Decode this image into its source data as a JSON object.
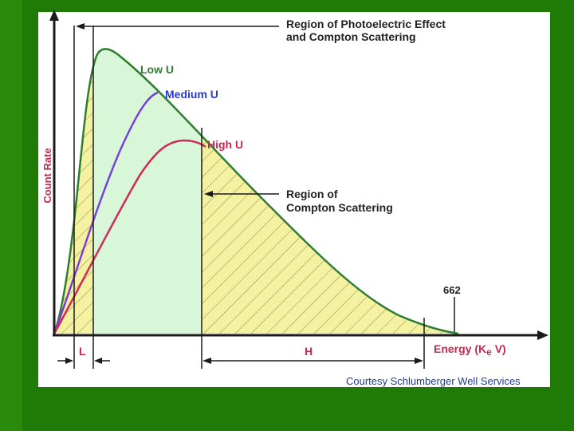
{
  "colors": {
    "background": "#1f7a06",
    "panel": "#ffffff",
    "low_curve": "#2e7d32",
    "medium_curve": "#7a3fd6",
    "high_curve": "#d0295a",
    "photoelectric_fill": "#d8f7d8",
    "compton_fill": "#f4f2a0",
    "hatch": "#8a8a50",
    "axis": "#1b1b1b",
    "label_red": "#c62850",
    "label_blue": "#2a3ac8",
    "label_dark": "#222222",
    "label_credit": "#1a3f9a"
  },
  "diagram": {
    "y_axis_label": "Count Rate",
    "region_photo_line1": "Region of Photoelectric Effect",
    "region_photo_line2": "and Compton Scattering",
    "curve_low_label": "Low U",
    "curve_medium_label": "Medium U",
    "curve_high_label": "High U",
    "region_compton_line1": "Region of",
    "region_compton_line2": "Compton Scattering",
    "peak_label": "662",
    "x_axis_label": "Energy  (K",
    "x_axis_label_e": "e",
    "x_axis_label_end": " V)",
    "window_l": "L",
    "window_h": "H",
    "credit": "Courtesy Schlumberger Well Services"
  }
}
